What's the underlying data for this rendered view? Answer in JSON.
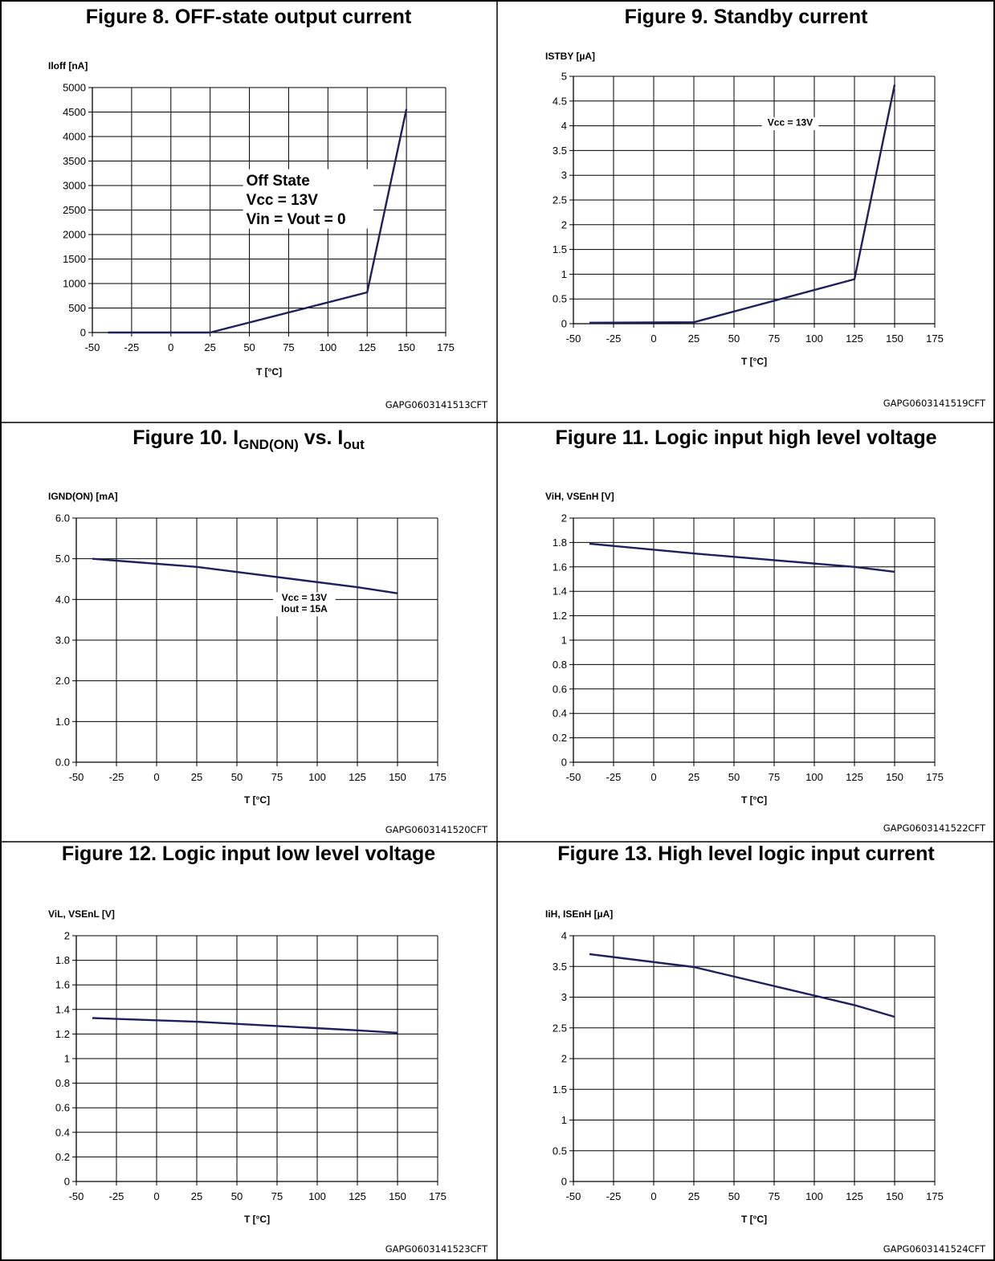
{
  "charts": [
    {
      "title": "Figure 8. OFF-state output current",
      "title_parts": null,
      "code": "GAPG0603141513CFT",
      "chart_data": {
        "type": "line",
        "title": "Figure 8. OFF-state output current",
        "ylabel": "Iloff [nA]",
        "xlabel": "T [°C]",
        "xlim": [
          -50,
          175
        ],
        "ylim": [
          0,
          5000
        ],
        "x_ticks": [
          -50,
          -25,
          0,
          25,
          50,
          75,
          100,
          125,
          150,
          175
        ],
        "y_ticks": [
          0,
          500,
          1000,
          1500,
          2000,
          2500,
          3000,
          3500,
          4000,
          4500,
          5000
        ],
        "y_tick_labels": [
          "0",
          "500",
          "1000",
          "1500",
          "2000",
          "2500",
          "3000",
          "3500",
          "4000",
          "4500",
          "5000"
        ],
        "grid": true,
        "series": [
          {
            "x": [
              -40,
              25,
              125,
              150
            ],
            "y": [
              0,
              0,
              820,
              4560
            ]
          }
        ],
        "annotations": [
          {
            "lines": [
              "Off State",
              "Vcc = 13V",
              "Vin = Vout = 0"
            ],
            "x": 48,
            "y": 3000,
            "size": "large"
          }
        ]
      }
    },
    {
      "title": "Figure 9. Standby current",
      "title_parts": null,
      "code": "GAPG0603141519CFT",
      "chart_data": {
        "type": "line",
        "title": "Figure 9. Standby current",
        "ylabel": "ISTBY [µA]",
        "xlabel": "T [°C]",
        "xlim": [
          -50,
          175
        ],
        "ylim": [
          0,
          5
        ],
        "x_ticks": [
          -50,
          -25,
          0,
          25,
          50,
          75,
          100,
          125,
          150,
          175
        ],
        "y_ticks": [
          0,
          0.5,
          1,
          1.5,
          2,
          2.5,
          3,
          3.5,
          4,
          4.5,
          5
        ],
        "y_tick_labels": [
          "0",
          "0.5",
          "1",
          "1.5",
          "2",
          "2.5",
          "3",
          "3.5",
          "4",
          "4.5",
          "5"
        ],
        "grid": true,
        "series": [
          {
            "x": [
              -40,
              25,
              125,
              150
            ],
            "y": [
              0.02,
              0.03,
              0.9,
              4.83
            ]
          }
        ],
        "annotations": [
          {
            "lines": [
              "Vcc = 13V"
            ],
            "x": 85,
            "y": 4,
            "size": "small"
          }
        ]
      }
    },
    {
      "title": "Figure 10. IGND(ON) vs. Iout",
      "title_parts": {
        "pre": "Figure 10. I",
        "sub1": "GND(ON)",
        "mid": " vs. I",
        "sub2": "out"
      },
      "code": "GAPG0603141520CFT",
      "chart_data": {
        "type": "line",
        "title": "Figure 10. IGND(ON) vs. Iout",
        "ylabel": "IGND(ON) [mA]",
        "xlabel": "T [°C]",
        "xlim": [
          -50,
          175
        ],
        "ylim": [
          0,
          6
        ],
        "x_ticks": [
          -50,
          -25,
          0,
          25,
          50,
          75,
          100,
          125,
          150,
          175
        ],
        "y_ticks": [
          0,
          1,
          2,
          3,
          4,
          5,
          6
        ],
        "y_tick_labels": [
          "0.0",
          "1.0",
          "2.0",
          "3.0",
          "4.0",
          "5.0",
          "6.0"
        ],
        "grid": true,
        "series": [
          {
            "x": [
              -40,
              25,
              125,
              150
            ],
            "y": [
              5.0,
              4.8,
              4.3,
              4.15
            ]
          }
        ],
        "annotations": [
          {
            "lines": [
              "Vcc = 13V",
              "Iout = 15A"
            ],
            "x": 92,
            "y": 3.97,
            "size": "small"
          }
        ]
      }
    },
    {
      "title": "Figure 11. Logic input high level voltage",
      "title_parts": null,
      "code": "GAPG0603141522CFT",
      "chart_data": {
        "type": "line",
        "title": "Figure 11. Logic input high level voltage",
        "ylabel": "ViH, VSEnH [V]",
        "xlabel": "T [°C]",
        "xlim": [
          -50,
          175
        ],
        "ylim": [
          0,
          2
        ],
        "x_ticks": [
          -50,
          -25,
          0,
          25,
          50,
          75,
          100,
          125,
          150,
          175
        ],
        "y_ticks": [
          0,
          0.2,
          0.4,
          0.6,
          0.8,
          1,
          1.2,
          1.4,
          1.6,
          1.8,
          2
        ],
        "y_tick_labels": [
          "0",
          "0.2",
          "0.4",
          "0.6",
          "0.8",
          "1",
          "1.2",
          "1.4",
          "1.6",
          "1.8",
          "2"
        ],
        "grid": true,
        "series": [
          {
            "x": [
              -40,
              25,
              125,
              150
            ],
            "y": [
              1.79,
              1.71,
              1.6,
              1.56
            ]
          }
        ],
        "annotations": []
      }
    },
    {
      "title": "Figure 12. Logic input low level voltage",
      "title_parts": null,
      "code": "GAPG0603141523CFT",
      "chart_data": {
        "type": "line",
        "title": "Figure 12. Logic input low level voltage",
        "ylabel": "ViL, VSEnL [V]",
        "xlabel": "T [°C]",
        "xlim": [
          -50,
          175
        ],
        "ylim": [
          0,
          2
        ],
        "x_ticks": [
          -50,
          -25,
          0,
          25,
          50,
          75,
          100,
          125,
          150,
          175
        ],
        "y_ticks": [
          0,
          0.2,
          0.4,
          0.6,
          0.8,
          1,
          1.2,
          1.4,
          1.6,
          1.8,
          2
        ],
        "y_tick_labels": [
          "0",
          "0.2",
          "0.4",
          "0.6",
          "0.8",
          "1",
          "1.2",
          "1.4",
          "1.6",
          "1.8",
          "2"
        ],
        "grid": true,
        "series": [
          {
            "x": [
              -40,
              25,
              125,
              150
            ],
            "y": [
              1.33,
              1.3,
              1.23,
              1.21
            ]
          }
        ],
        "annotations": []
      }
    },
    {
      "title": "Figure 13. High level logic input current",
      "title_parts": null,
      "code": "GAPG0603141524CFT",
      "chart_data": {
        "type": "line",
        "title": "Figure 13. High level logic input current",
        "ylabel": "IiH, ISEnH [µA]",
        "xlabel": "T [°C]",
        "xlim": [
          -50,
          175
        ],
        "ylim": [
          0,
          4
        ],
        "x_ticks": [
          -50,
          -25,
          0,
          25,
          50,
          75,
          100,
          125,
          150,
          175
        ],
        "y_ticks": [
          0,
          0.5,
          1,
          1.5,
          2,
          2.5,
          3,
          3.5,
          4
        ],
        "y_tick_labels": [
          "0",
          "0.5",
          "1",
          "1.5",
          "2",
          "2.5",
          "3",
          "3.5",
          "4"
        ],
        "grid": true,
        "series": [
          {
            "x": [
              -40,
              25,
              125,
              150
            ],
            "y": [
              3.7,
              3.49,
              2.87,
              2.68
            ]
          }
        ],
        "annotations": []
      }
    }
  ],
  "colors": {
    "line": "#1f1f5c",
    "grid": "#000000",
    "border": "#000000"
  }
}
